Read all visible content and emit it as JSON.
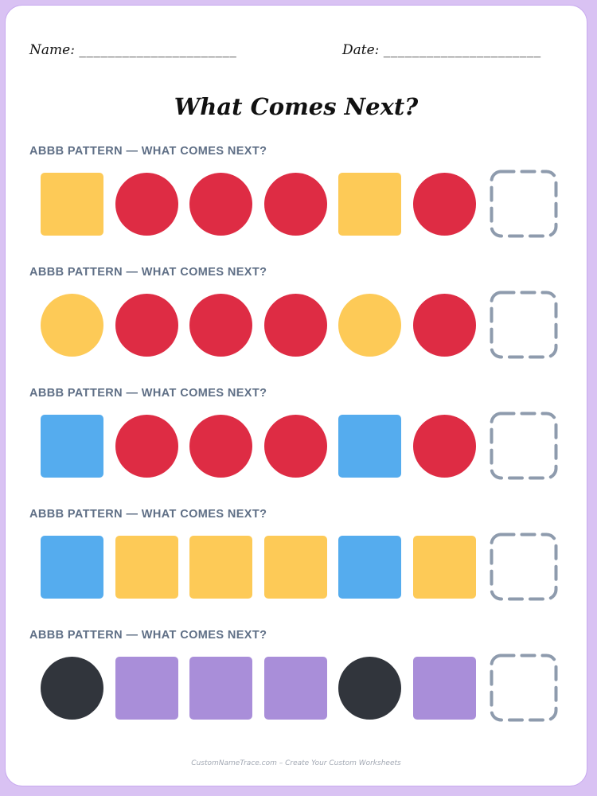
{
  "header": {
    "name_label": "Name:",
    "name_line": "______________________",
    "date_label": "Date:",
    "date_line": "______________________"
  },
  "title": "What Comes Next?",
  "colors": {
    "yellow": "#fdca57",
    "red": "#de2c44",
    "blue": "#55acee",
    "black": "#31353c",
    "purple": "#a98ed9",
    "answer_border": "#8e9bad",
    "label": "#5f6f86",
    "page_border": "#d9c2f3"
  },
  "patterns": [
    {
      "label": "ABBB PATTERN — WHAT COMES NEXT?",
      "items": [
        {
          "shape": "square",
          "color": "yellow"
        },
        {
          "shape": "circle",
          "color": "red"
        },
        {
          "shape": "circle",
          "color": "red"
        },
        {
          "shape": "circle",
          "color": "red"
        },
        {
          "shape": "square",
          "color": "yellow"
        },
        {
          "shape": "circle",
          "color": "red"
        }
      ]
    },
    {
      "label": "ABBB PATTERN — WHAT COMES NEXT?",
      "items": [
        {
          "shape": "circle",
          "color": "yellow"
        },
        {
          "shape": "circle",
          "color": "red"
        },
        {
          "shape": "circle",
          "color": "red"
        },
        {
          "shape": "circle",
          "color": "red"
        },
        {
          "shape": "circle",
          "color": "yellow"
        },
        {
          "shape": "circle",
          "color": "red"
        }
      ]
    },
    {
      "label": "ABBB PATTERN — WHAT COMES NEXT?",
      "items": [
        {
          "shape": "square",
          "color": "blue"
        },
        {
          "shape": "circle",
          "color": "red"
        },
        {
          "shape": "circle",
          "color": "red"
        },
        {
          "shape": "circle",
          "color": "red"
        },
        {
          "shape": "square",
          "color": "blue"
        },
        {
          "shape": "circle",
          "color": "red"
        }
      ]
    },
    {
      "label": "ABBB PATTERN — WHAT COMES NEXT?",
      "items": [
        {
          "shape": "square",
          "color": "blue"
        },
        {
          "shape": "square",
          "color": "yellow"
        },
        {
          "shape": "square",
          "color": "yellow"
        },
        {
          "shape": "square",
          "color": "yellow"
        },
        {
          "shape": "square",
          "color": "blue"
        },
        {
          "shape": "square",
          "color": "yellow"
        }
      ]
    },
    {
      "label": "ABBB PATTERN — WHAT COMES NEXT?",
      "items": [
        {
          "shape": "circle",
          "color": "black"
        },
        {
          "shape": "square",
          "color": "purple"
        },
        {
          "shape": "square",
          "color": "purple"
        },
        {
          "shape": "square",
          "color": "purple"
        },
        {
          "shape": "circle",
          "color": "black"
        },
        {
          "shape": "square",
          "color": "purple"
        }
      ]
    }
  ],
  "footer": "CustomNameTrace.com – Create Your Custom Worksheets"
}
